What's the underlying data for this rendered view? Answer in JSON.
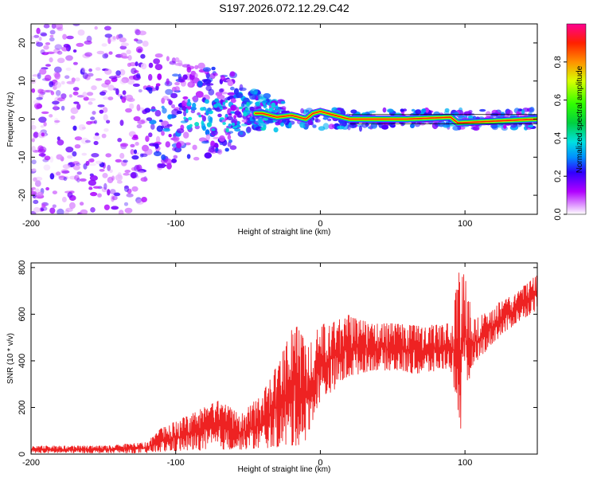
{
  "title": "S197.2026.072.12.29.C42",
  "chart_data": [
    {
      "type": "heatmap",
      "xlabel": "Height of straight line (km)",
      "ylabel": "Frequency (Hz)",
      "xlim": [
        -200,
        150
      ],
      "ylim": [
        -25,
        25
      ],
      "x_ticks": [
        -200,
        -100,
        0,
        100
      ],
      "y_ticks": [
        20,
        10,
        0,
        -10,
        -20
      ],
      "colorbar": {
        "label": "Normalized spectral amplitude",
        "range": [
          0,
          1
        ],
        "ticks": [
          0.0,
          0.2,
          0.4,
          0.6,
          0.8
        ]
      },
      "ridge": {
        "description_points": [
          [
            -40,
            1.5
          ],
          [
            -30,
            0.5
          ],
          [
            -20,
            1
          ],
          [
            -10,
            0
          ],
          [
            -5,
            1.5
          ],
          [
            0,
            2
          ],
          [
            5,
            1.5
          ],
          [
            10,
            1
          ],
          [
            20,
            0
          ],
          [
            60,
            0
          ],
          [
            90,
            0.5
          ],
          [
            95,
            -1
          ],
          [
            150,
            0
          ]
        ],
        "frequency_hz": 0
      }
    },
    {
      "type": "line",
      "xlabel": "Height of straight line (km)",
      "ylabel": "SNR (10 * v/v)",
      "xlim": [
        -200,
        150
      ],
      "ylim": [
        0,
        820
      ],
      "x_ticks": [
        -200,
        -100,
        0,
        100
      ],
      "y_ticks": [
        0,
        200,
        400,
        600,
        800
      ],
      "color": "#ee2222",
      "envelope": [
        {
          "x": -200,
          "low": 5,
          "high": 35
        },
        {
          "x": -150,
          "low": 5,
          "high": 35
        },
        {
          "x": -120,
          "low": 5,
          "high": 50
        },
        {
          "x": -110,
          "low": 10,
          "high": 110
        },
        {
          "x": -90,
          "low": 15,
          "high": 170
        },
        {
          "x": -70,
          "low": 20,
          "high": 230
        },
        {
          "x": -55,
          "low": 20,
          "high": 170
        },
        {
          "x": -40,
          "low": 25,
          "high": 260
        },
        {
          "x": -30,
          "low": 30,
          "high": 380
        },
        {
          "x": -20,
          "low": 30,
          "high": 540
        },
        {
          "x": -15,
          "low": 40,
          "high": 590
        },
        {
          "x": -10,
          "low": 60,
          "high": 450
        },
        {
          "x": -5,
          "low": 150,
          "high": 500
        },
        {
          "x": 0,
          "low": 230,
          "high": 560
        },
        {
          "x": 10,
          "low": 280,
          "high": 570
        },
        {
          "x": 20,
          "low": 330,
          "high": 600
        },
        {
          "x": 35,
          "low": 360,
          "high": 560
        },
        {
          "x": 50,
          "low": 360,
          "high": 560
        },
        {
          "x": 70,
          "low": 340,
          "high": 550
        },
        {
          "x": 90,
          "low": 370,
          "high": 560
        },
        {
          "x": 97,
          "low": 100,
          "high": 820
        },
        {
          "x": 100,
          "low": 200,
          "high": 820
        },
        {
          "x": 105,
          "low": 380,
          "high": 570
        },
        {
          "x": 120,
          "low": 480,
          "high": 640
        },
        {
          "x": 135,
          "low": 560,
          "high": 690
        },
        {
          "x": 150,
          "low": 620,
          "high": 770
        }
      ]
    }
  ]
}
